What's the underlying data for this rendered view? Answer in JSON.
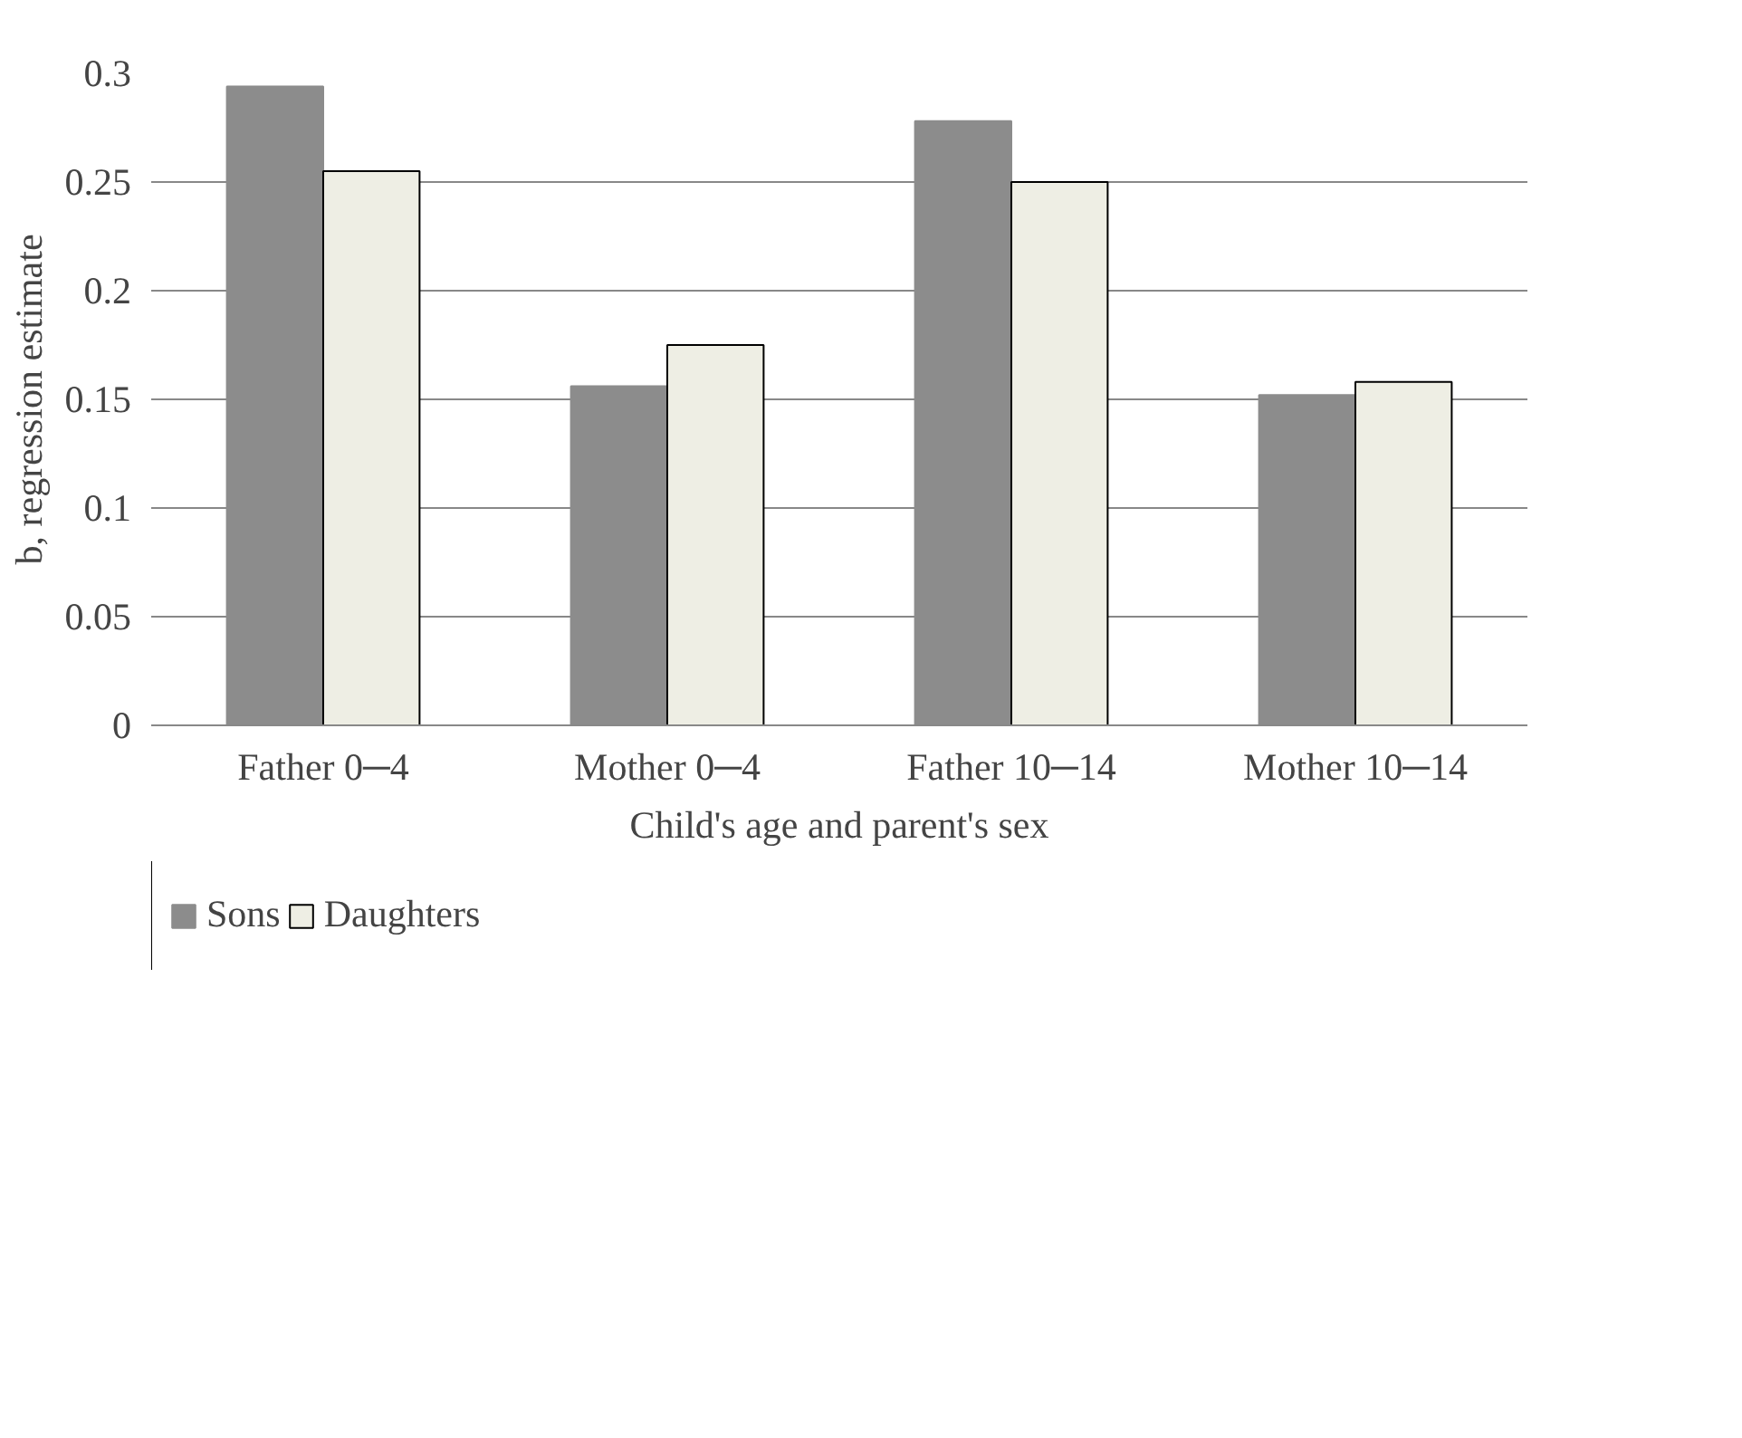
{
  "chart_data": {
    "type": "bar",
    "categories": [
      "Father 0─4",
      "Mother 0─4",
      "Father 10─14",
      "Mother 10─14"
    ],
    "series": [
      {
        "name": "Sons",
        "color": "#8c8c8c",
        "values": [
          0.294,
          0.156,
          0.278,
          0.152
        ]
      },
      {
        "name": "Daughters",
        "color": "#eeeee4",
        "values": [
          0.255,
          0.175,
          0.25,
          0.158
        ]
      }
    ],
    "xlabel": "Child's age and parent's sex",
    "ylabel": "b, regression estimate",
    "ylim": [
      0,
      0.3
    ],
    "yticks": [
      0,
      0.05,
      0.1,
      0.15,
      0.2,
      0.25,
      0.3
    ],
    "grid": "y",
    "legend": "bottom"
  }
}
